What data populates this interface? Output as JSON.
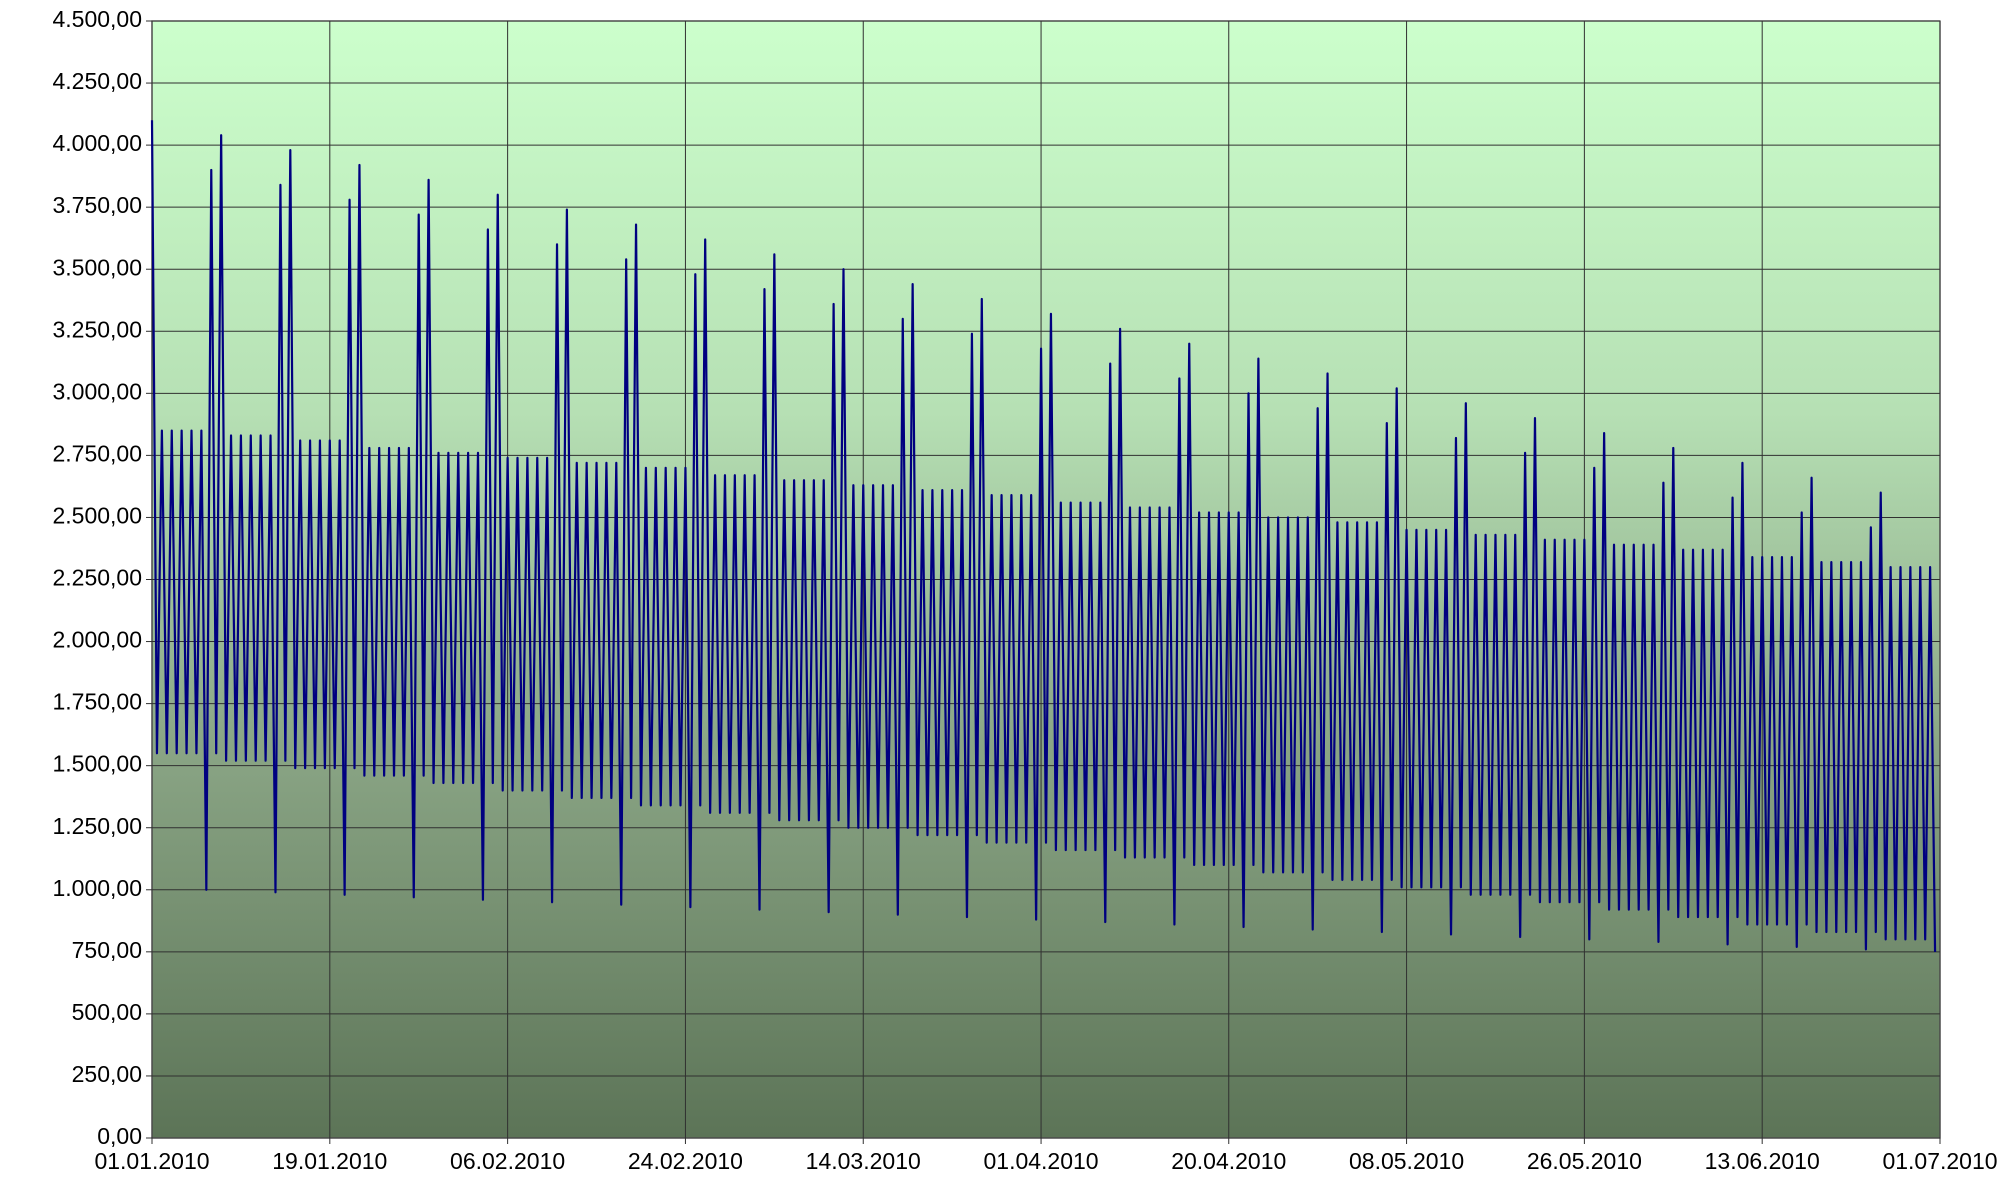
{
  "chart_data": {
    "type": "line",
    "color": "#000080",
    "grid": true,
    "xlim": [
      0,
      181
    ],
    "xticks": [
      {
        "value": 0,
        "label": "01.01.2010"
      },
      {
        "value": 18,
        "label": "19.01.2010"
      },
      {
        "value": 36,
        "label": "06.02.2010"
      },
      {
        "value": 54,
        "label": "24.02.2010"
      },
      {
        "value": 72,
        "label": "14.03.2010"
      },
      {
        "value": 90,
        "label": "01.04.2010"
      },
      {
        "value": 109,
        "label": "20.04.2010"
      },
      {
        "value": 127,
        "label": "08.05.2010"
      },
      {
        "value": 145,
        "label": "26.05.2010"
      },
      {
        "value": 163,
        "label": "13.06.2010"
      },
      {
        "value": 181,
        "label": "01.07.2010"
      }
    ],
    "ylim": [
      0,
      4500
    ],
    "yticks": [
      {
        "value": 0,
        "label": "0,00"
      },
      {
        "value": 250,
        "label": "250,00"
      },
      {
        "value": 500,
        "label": "500,00"
      },
      {
        "value": 750,
        "label": "750,00"
      },
      {
        "value": 1000,
        "label": "1.000,00"
      },
      {
        "value": 1250,
        "label": "1.250,00"
      },
      {
        "value": 1500,
        "label": "1.500,00"
      },
      {
        "value": 1750,
        "label": "1.750,00"
      },
      {
        "value": 2000,
        "label": "2.000,00"
      },
      {
        "value": 2250,
        "label": "2.250,00"
      },
      {
        "value": 2500,
        "label": "2.500,00"
      },
      {
        "value": 2750,
        "label": "2.750,00"
      },
      {
        "value": 3000,
        "label": "3.000,00"
      },
      {
        "value": 3250,
        "label": "3.250,00"
      },
      {
        "value": 3500,
        "label": "3.500,00"
      },
      {
        "value": 3750,
        "label": "3.750,00"
      },
      {
        "value": 4000,
        "label": "4.000,00"
      },
      {
        "value": 4250,
        "label": "4.250,00"
      },
      {
        "value": 4500,
        "label": "4.500,00"
      }
    ],
    "x": [
      0,
      0.5,
      1,
      1.5,
      2,
      2.5,
      3,
      3.5,
      4,
      4.5,
      5,
      5.5,
      6,
      6.5,
      7,
      7.5,
      8,
      8.5,
      9,
      9.5,
      10,
      10.5,
      11,
      11.5,
      12,
      12.5,
      13,
      13.5,
      14,
      14.5,
      15,
      15.5,
      16,
      16.5,
      17,
      17.5,
      18,
      18.5,
      19,
      19.5,
      20,
      20.5,
      21,
      21.5,
      22,
      22.5,
      23,
      23.5,
      24,
      24.5,
      25,
      25.5,
      26,
      26.5,
      27,
      27.5,
      28,
      28.5,
      29,
      29.5,
      30,
      30.5,
      31,
      31.5,
      32,
      32.5,
      33,
      33.5,
      34,
      34.5,
      35,
      35.5,
      36,
      36.5,
      37,
      37.5,
      38,
      38.5,
      39,
      39.5,
      40,
      40.5,
      41,
      41.5,
      42,
      42.5,
      43,
      43.5,
      44,
      44.5,
      45,
      45.5,
      46,
      46.5,
      47,
      47.5,
      48,
      48.5,
      49,
      49.5,
      50,
      50.5,
      51,
      51.5,
      52,
      52.5,
      53,
      53.5,
      54,
      54.5,
      55,
      55.5,
      56,
      56.5,
      57,
      57.5,
      58,
      58.5,
      59,
      59.5,
      60,
      60.5,
      61,
      61.5,
      62,
      62.5,
      63,
      63.5,
      64,
      64.5,
      65,
      65.5,
      66,
      66.5,
      67,
      67.5,
      68,
      68.5,
      69,
      69.5,
      70,
      70.5,
      71,
      71.5,
      72,
      72.5,
      73,
      73.5,
      74,
      74.5,
      75,
      75.5,
      76,
      76.5,
      77,
      77.5,
      78,
      78.5,
      79,
      79.5,
      80,
      80.5,
      81,
      81.5,
      82,
      82.5,
      83,
      83.5,
      84,
      84.5,
      85,
      85.5,
      86,
      86.5,
      87,
      87.5,
      88,
      88.5,
      89,
      89.5,
      90,
      90.5,
      91,
      91.5,
      92,
      92.5,
      93,
      93.5,
      94,
      94.5,
      95,
      95.5,
      96,
      96.5,
      97,
      97.5,
      98,
      98.5,
      99,
      99.5,
      100,
      100.5,
      101,
      101.5,
      102,
      102.5,
      103,
      103.5,
      104,
      104.5,
      105,
      105.5,
      106,
      106.5,
      107,
      107.5,
      108,
      108.5,
      109,
      109.5,
      110,
      110.5,
      111,
      111.5,
      112,
      112.5,
      113,
      113.5,
      114,
      114.5,
      115,
      115.5,
      116,
      116.5,
      117,
      117.5,
      118,
      118.5,
      119,
      119.5,
      120,
      120.5,
      121,
      121.5,
      122,
      122.5,
      123,
      123.5,
      124,
      124.5,
      125,
      125.5,
      126,
      126.5,
      127,
      127.5,
      128,
      128.5,
      129,
      129.5,
      130,
      130.5,
      131,
      131.5,
      132,
      132.5,
      133,
      133.5,
      134,
      134.5,
      135,
      135.5,
      136,
      136.5,
      137,
      137.5,
      138,
      138.5,
      139,
      139.5,
      140,
      140.5,
      141,
      141.5,
      142,
      142.5,
      143,
      143.5,
      144,
      144.5,
      145,
      145.5,
      146,
      146.5,
      147,
      147.5,
      148,
      148.5,
      149,
      149.5,
      150,
      150.5,
      151,
      151.5,
      152,
      152.5,
      153,
      153.5,
      154,
      154.5,
      155,
      155.5,
      156,
      156.5,
      157,
      157.5,
      158,
      158.5,
      159,
      159.5,
      160,
      160.5,
      161,
      161.5,
      162,
      162.5,
      163,
      163.5,
      164,
      164.5,
      165,
      165.5,
      166,
      166.5,
      167,
      167.5,
      168,
      168.5,
      169,
      169.5,
      170,
      170.5,
      171,
      171.5,
      172,
      172.5,
      173,
      173.5,
      174,
      174.5,
      175,
      175.5,
      176,
      176.5,
      177,
      177.5,
      178,
      178.5,
      179,
      179.5,
      180,
      180.5
    ],
    "values": [
      4100,
      1550,
      2850,
      1550,
      2850,
      1550,
      2850,
      1550,
      2850,
      1550,
      2850,
      1000,
      3900,
      1550,
      4040,
      1520,
      2830,
      1520,
      2830,
      1520,
      2830,
      1520,
      2830,
      1520,
      2830,
      990,
      3840,
      1520,
      3980,
      1490,
      2810,
      1490,
      2810,
      1490,
      2810,
      1490,
      2810,
      1490,
      2810,
      980,
      3780,
      1490,
      3920,
      1460,
      2780,
      1460,
      2780,
      1460,
      2780,
      1460,
      2780,
      1460,
      2780,
      970,
      3720,
      1460,
      3860,
      1430,
      2760,
      1430,
      2760,
      1430,
      2760,
      1430,
      2760,
      1430,
      2760,
      960,
      3660,
      1430,
      3800,
      1400,
      2740,
      1400,
      2740,
      1400,
      2740,
      1400,
      2740,
      1400,
      2740,
      950,
      3600,
      1400,
      3740,
      1370,
      2720,
      1370,
      2720,
      1370,
      2720,
      1370,
      2720,
      1370,
      2720,
      940,
      3540,
      1370,
      3680,
      1340,
      2700,
      1340,
      2700,
      1340,
      2700,
      1340,
      2700,
      1340,
      2700,
      930,
      3480,
      1340,
      3620,
      1310,
      2670,
      1310,
      2670,
      1310,
      2670,
      1310,
      2670,
      1310,
      2670,
      920,
      3420,
      1310,
      3560,
      1280,
      2650,
      1280,
      2650,
      1280,
      2650,
      1280,
      2650,
      1280,
      2650,
      910,
      3360,
      1280,
      3500,
      1250,
      2630,
      1250,
      2630,
      1250,
      2630,
      1250,
      2630,
      1250,
      2630,
      900,
      3300,
      1250,
      3440,
      1220,
      2610,
      1220,
      2610,
      1220,
      2610,
      1220,
      2610,
      1220,
      2610,
      890,
      3240,
      1220,
      3380,
      1190,
      2590,
      1190,
      2590,
      1190,
      2590,
      1190,
      2590,
      1190,
      2590,
      880,
      3180,
      1190,
      3320,
      1160,
      2560,
      1160,
      2560,
      1160,
      2560,
      1160,
      2560,
      1160,
      2560,
      870,
      3120,
      1160,
      3260,
      1130,
      2540,
      1130,
      2540,
      1130,
      2540,
      1130,
      2540,
      1130,
      2540,
      860,
      3060,
      1130,
      3200,
      1100,
      2520,
      1100,
      2520,
      1100,
      2520,
      1100,
      2520,
      1100,
      2520,
      850,
      3000,
      1100,
      3140,
      1070,
      2500,
      1070,
      2500,
      1070,
      2500,
      1070,
      2500,
      1070,
      2500,
      840,
      2940,
      1070,
      3080,
      1040,
      2480,
      1040,
      2480,
      1040,
      2480,
      1040,
      2480,
      1040,
      2480,
      830,
      2880,
      1040,
      3020,
      1010,
      2450,
      1010,
      2450,
      1010,
      2450,
      1010,
      2450,
      1010,
      2450,
      820,
      2820,
      1010,
      2960,
      980,
      2430,
      980,
      2430,
      980,
      2430,
      980,
      2430,
      980,
      2430,
      810,
      2760,
      980,
      2900,
      950,
      2410,
      950,
      2410,
      950,
      2410,
      950,
      2410,
      950,
      2410,
      800,
      2700,
      950,
      2840,
      920,
      2390,
      920,
      2390,
      920,
      2390,
      920,
      2390,
      920,
      2390,
      790,
      2640,
      920,
      2780,
      890,
      2370,
      890,
      2370,
      890,
      2370,
      890,
      2370,
      890,
      2370,
      780,
      2580,
      890,
      2720,
      860,
      2340,
      860,
      2340,
      860,
      2340,
      860,
      2340,
      860,
      2340,
      770,
      2520,
      860,
      2660,
      830,
      2320,
      830,
      2320,
      830,
      2320,
      830,
      2320,
      830,
      2320,
      760,
      2460,
      830,
      2600,
      800,
      2300,
      800,
      2300,
      800,
      2300,
      800,
      2300,
      800,
      2300,
      750
    ]
  }
}
